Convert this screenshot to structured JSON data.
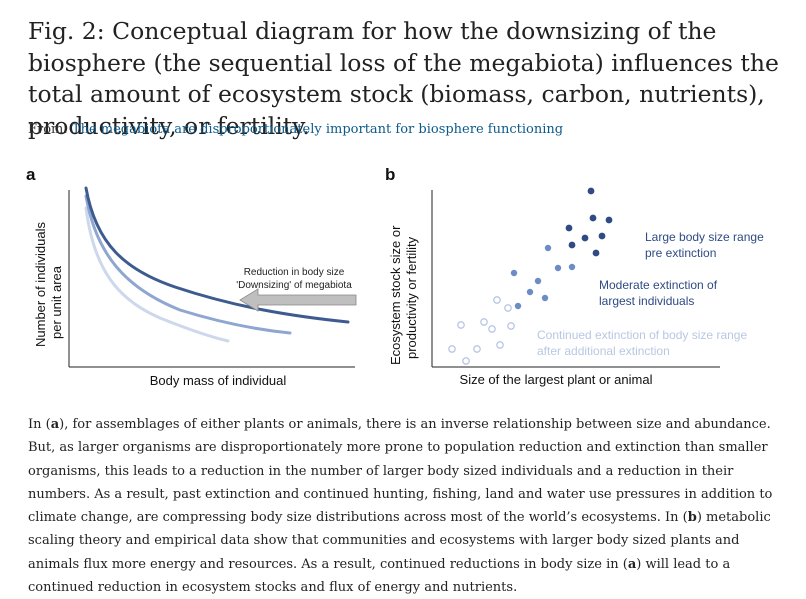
{
  "title": "Fig. 2: Conceptual diagram for how the downsizing of the biosphere (the sequential loss of the megabiota) influences the total amount of ecosystem stock (biomass, carbon, nutrients), productivity, or fertility.",
  "from_label": "From:",
  "from_link": "The megabiota are disproportionately important for biosphere functioning",
  "panel_a": {
    "label": "a",
    "ylabel_line1": "Number of individuals",
    "ylabel_line2": "per unit area",
    "xlabel": "Body mass of individual",
    "annotation_line1": "Reduction in body size",
    "annotation_line2": "'Downsizing' of megabiota",
    "colors": {
      "dark": "#3d5b8f",
      "mid": "#8fa6d1",
      "light": "#cdd8ec",
      "arrow": "#bfbfbf"
    }
  },
  "panel_b": {
    "label": "b",
    "ylabel_line1": "Ecosystem stock size or",
    "ylabel_line2": "productivity or fertility",
    "xlabel": "Size of the largest plant or animal",
    "legend_dark_line1": "Large body size range",
    "legend_dark_line2": "pre extinction",
    "legend_mid_line1": "Moderate extinction of",
    "legend_mid_line2": "largest individuals",
    "legend_light_line1": "Continued extinction of body size range",
    "legend_light_line2": "after additional extinction",
    "colors": {
      "dark": "#2f4a85",
      "mid": "#6d8cc6",
      "light": "#b8c7e3"
    }
  },
  "caption": {
    "p1": "In (",
    "a1": "a",
    "p2": "), for assemblages of either plants or animals,  there is an inverse relationship between size and abundance. But, as larger organisms are disproportionately more prone to population reduction and extinction than smaller organisms, this leads to a reduction in the number of larger body sized individuals and a reduction in their numbers. As a result, past extinction and continued hunting, fishing, land and water use pressures in addition to climate change, are compressing body size distributions across most of the world’s ecosystems. In (",
    "b1": "b",
    "p3": ") metabolic scaling theory and empirical data show that communities and ecosystems with larger body sized plants and animals flux more energy and resources. As a result, continued reductions in body size in (",
    "a2": "a",
    "p4": ") will lead to a continued reduction in ecosystem stocks and flux of energy and nutrients."
  }
}
